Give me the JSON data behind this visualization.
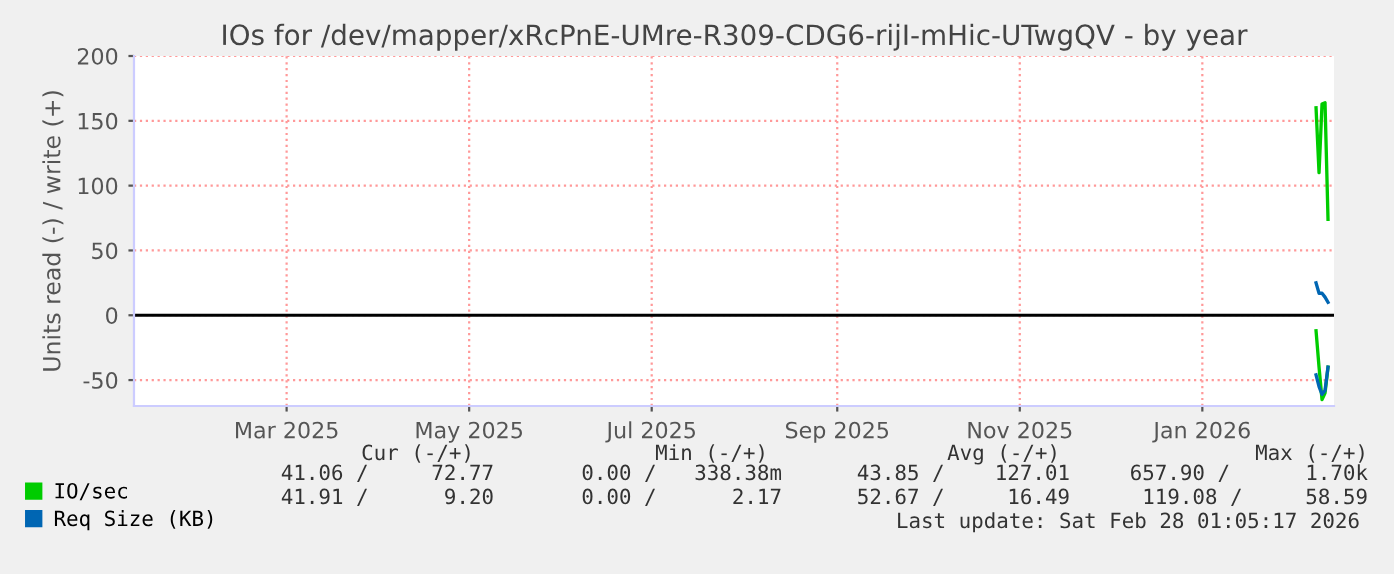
{
  "chart_data": {
    "type": "line",
    "title": "IOs for /dev/mapper/xRcPnE-UMre-R309-CDG6-rijI-mHic-UTwgQV - by year",
    "ylabel": "Units read (-) / write (+)",
    "x": [
      "2026-02-08",
      "2026-02-09",
      "2026-02-10",
      "2026-02-11",
      "2026-02-12"
    ],
    "series": [
      {
        "name": "IO/sec",
        "color": "#00cc00",
        "values": [
          160,
          110,
          163,
          164,
          74
        ]
      },
      {
        "name": "Req Size (KB)",
        "color": "#0066b3",
        "values": [
          25,
          17,
          17,
          14,
          10
        ]
      },
      {
        "color": "#00cd00",
        "values": [
          -12,
          -40,
          -65,
          -60,
          -40
        ]
      },
      {
        "color": "#0067b4",
        "values": [
          -46,
          -55,
          -61,
          -58,
          -40
        ]
      }
    ],
    "xlim": [
      "2025-01-09",
      "2026-02-14"
    ],
    "xticks": [
      {
        "value": "2025-03-01",
        "label": "Mar 2025"
      },
      {
        "value": "2025-05-01",
        "label": "May 2025"
      },
      {
        "value": "2025-07-01",
        "label": "Jul 2025"
      },
      {
        "value": "2025-09-01",
        "label": "Sep 2025"
      },
      {
        "value": "2025-11-01",
        "label": "Nov 2025"
      },
      {
        "value": "2026-01-01",
        "label": "Jan 2026"
      }
    ],
    "ylim": [
      -70,
      200
    ],
    "yticks": [
      -50,
      0,
      50,
      100,
      150,
      200
    ],
    "ref_lines": [
      {
        "axis": "y",
        "value": 0,
        "color": "#000000"
      }
    ],
    "grid": true,
    "legend": "bottom",
    "annotations": [
      "Cur (-/+)",
      "Min (-/+)",
      "Avg (-/+)",
      "Max (-/+)",
      "41.06 /     72.77",
      "0.00 /   338.38m",
      "43.85 /    127.01",
      "657.90 /      1.70k",
      "41.91 /      9.20",
      "0.00 /      2.17",
      "52.67 /     16.49",
      "119.08 /     58.59",
      "Last update: Sat Feb 28 01:05:17 2026"
    ]
  }
}
